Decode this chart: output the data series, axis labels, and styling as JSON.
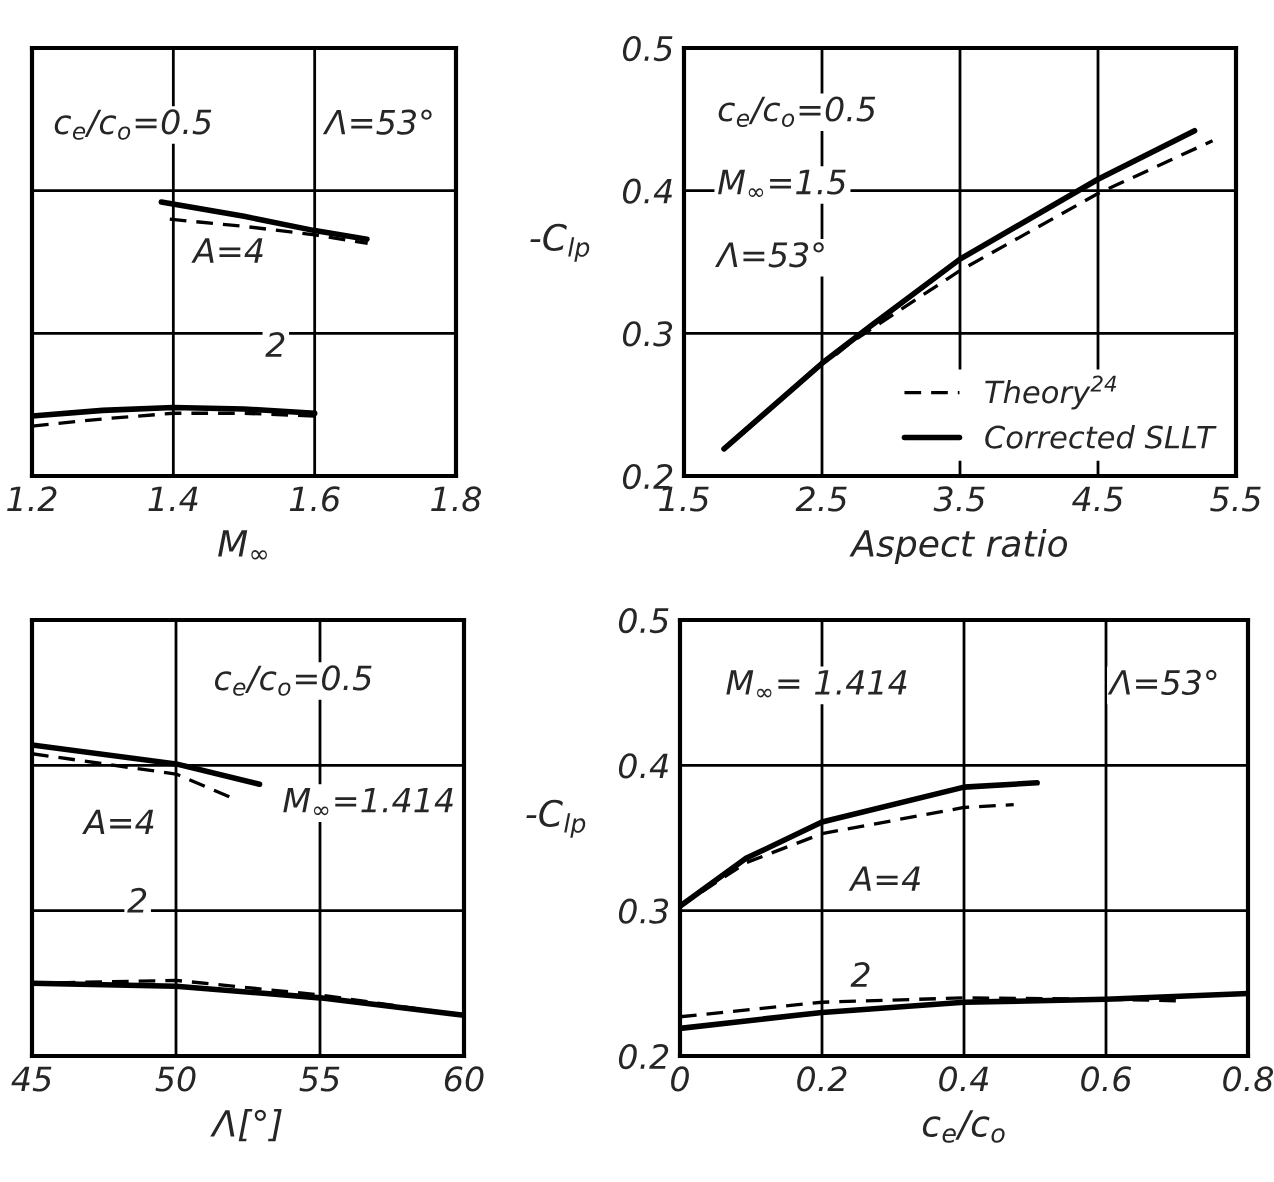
{
  "chart_data": [
    {
      "type": "line",
      "xlabel": "M$_{∞}$",
      "xlim": [
        1.2,
        1.8
      ],
      "xticks": [
        1.2,
        1.4,
        1.6,
        1.8
      ],
      "ylim": [
        0.2,
        0.5
      ],
      "yticks": [
        0.2,
        0.3,
        0.4,
        0.5
      ],
      "tick_labels": "x",
      "grid": true,
      "series": [
        {
          "color": "#000000",
          "line_style": "solid",
          "x": [
            1.383,
            1.5,
            1.6,
            1.674
          ],
          "values": [
            0.392,
            0.382,
            0.372,
            0.366
          ]
        },
        {
          "color": "#000000",
          "line_style": "dashed",
          "x": [
            1.395,
            1.5,
            1.6,
            1.675
          ],
          "values": [
            0.38,
            0.375,
            0.369,
            0.363
          ]
        },
        {
          "color": "#000000",
          "line_style": "solid",
          "x": [
            1.2,
            1.3,
            1.4,
            1.5,
            1.6
          ],
          "values": [
            0.242,
            0.246,
            0.248,
            0.247,
            0.244
          ]
        },
        {
          "color": "#000000",
          "line_style": "dashed",
          "x": [
            1.2,
            1.3,
            1.4,
            1.5,
            1.6
          ],
          "values": [
            0.235,
            0.24,
            0.244,
            0.244,
            0.242
          ]
        }
      ],
      "annotations": [
        "c$_{e}$/c$_{o}$=0.5",
        "Λ=53°",
        "A=4",
        "2"
      ]
    },
    {
      "type": "line",
      "xlabel": "Aspect ratio",
      "ylabel": "-C$_{lp}$",
      "xlim": [
        1.5,
        5.5
      ],
      "xticks": [
        1.5,
        2.5,
        3.5,
        4.5,
        5.5
      ],
      "ylim": [
        0.2,
        0.5
      ],
      "yticks": [
        0.2,
        0.3,
        0.4,
        0.5
      ],
      "grid": true,
      "legend": "bottom right",
      "series": [
        {
          "name": "Theory$^{24}$",
          "color": "#000000",
          "line_style": "dashed",
          "x": [
            2.6,
            2.7,
            3.5,
            4.5,
            5.33
          ],
          "values": [
            0.285,
            0.293,
            0.344,
            0.398,
            0.435
          ]
        },
        {
          "name": "Corrected SLLT",
          "color": "#000000",
          "line_style": "solid",
          "x": [
            1.79,
            2.5,
            2.85,
            3.5,
            4.5,
            5.2
          ],
          "values": [
            0.219,
            0.279,
            0.305,
            0.352,
            0.408,
            0.442
          ]
        }
      ],
      "annotations": [
        "c$_{e}$/c$_{o}$=0.5",
        "M$_{∞}$=1.5",
        "Λ=53°"
      ]
    },
    {
      "type": "line",
      "xlabel": "Λ[°]",
      "xlim": [
        45,
        60
      ],
      "xticks": [
        45,
        50,
        55,
        60
      ],
      "ylim": [
        0.2,
        0.5
      ],
      "yticks": [
        0.2,
        0.3,
        0.4,
        0.5
      ],
      "tick_labels": "x",
      "grid": true,
      "series": [
        {
          "color": "#000000",
          "line_style": "solid",
          "x": [
            45,
            50,
            52.9
          ],
          "values": [
            0.414,
            0.401,
            0.387
          ]
        },
        {
          "color": "#000000",
          "line_style": "dashed",
          "x": [
            45,
            50,
            51.9
          ],
          "values": [
            0.408,
            0.394,
            0.378
          ]
        },
        {
          "color": "#000000",
          "line_style": "solid",
          "x": [
            45,
            50,
            55,
            60
          ],
          "values": [
            0.25,
            0.248,
            0.24,
            0.228
          ]
        },
        {
          "color": "#000000",
          "line_style": "dashed",
          "x": [
            45,
            50,
            55,
            60
          ],
          "values": [
            0.25,
            0.252,
            0.242,
            0.228
          ]
        }
      ],
      "annotations": [
        "c$_{e}$/c$_{o}$=0.5",
        "M$_{∞}$=1.414",
        "A=4",
        "2"
      ]
    },
    {
      "type": "line",
      "xlabel": "c$_{e}$/c$_{o}$",
      "ylabel": "-C$_{lp}$",
      "xlim": [
        0,
        0.8
      ],
      "xticks": [
        0,
        0.2,
        0.4,
        0.6,
        0.8
      ],
      "ylim": [
        0.2,
        0.5
      ],
      "yticks": [
        0.2,
        0.3,
        0.4,
        0.5
      ],
      "grid": true,
      "series": [
        {
          "color": "#000000",
          "line_style": "solid",
          "x": [
            0,
            0.093,
            0.2,
            0.4,
            0.503
          ],
          "values": [
            0.303,
            0.336,
            0.361,
            0.385,
            0.388
          ]
        },
        {
          "color": "#000000",
          "line_style": "dashed",
          "x": [
            0,
            0.093,
            0.2,
            0.4,
            0.47
          ],
          "values": [
            0.303,
            0.333,
            0.353,
            0.371,
            0.373
          ]
        },
        {
          "color": "#000000",
          "line_style": "solid",
          "x": [
            0,
            0.2,
            0.4,
            0.6,
            0.8
          ],
          "values": [
            0.219,
            0.23,
            0.237,
            0.239,
            0.243
          ]
        },
        {
          "color": "#000000",
          "line_style": "dashed",
          "x": [
            0,
            0.2,
            0.4,
            0.6,
            0.7
          ],
          "values": [
            0.227,
            0.237,
            0.24,
            0.239,
            0.238
          ]
        }
      ],
      "annotations": [
        "M$_{∞}$= 1.414",
        "Λ=53°",
        "A=4",
        "2"
      ]
    }
  ]
}
